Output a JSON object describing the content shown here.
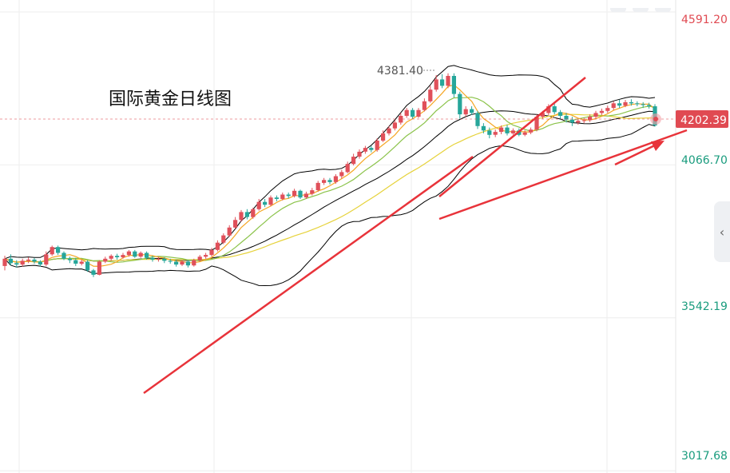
{
  "chart_data": {
    "type": "candlestick",
    "title": "国际黄金日线图",
    "price_axis": {
      "ticks": [
        "4591.20",
        "4066.70",
        "3542.19",
        "3017.68"
      ],
      "tick_values": [
        4591.2,
        4066.7,
        3542.19,
        3017.68
      ],
      "range": [
        3010,
        4605
      ],
      "position": "right"
    },
    "current_price": {
      "label": "4202.39",
      "value": 4202.39,
      "color": "#e04a52"
    },
    "peak_annotation": {
      "label": "4381.40",
      "value": 4381.4
    },
    "colors": {
      "up": "#e0505a",
      "down": "#26a69a",
      "bollinger": "#000000",
      "ma_short": "#f5a623",
      "ma_mid": "#8bc34a",
      "ma_long": "#e6d23a",
      "trend": "#e8333a",
      "grid": "#eeeeee"
    },
    "candles": [
      [
        3720,
        3745,
        3705,
        3755
      ],
      [
        3745,
        3730,
        3722,
        3760
      ],
      [
        3730,
        3725,
        3715,
        3740
      ],
      [
        3725,
        3738,
        3718,
        3745
      ],
      [
        3738,
        3742,
        3730,
        3750
      ],
      [
        3742,
        3735,
        3728,
        3748
      ],
      [
        3735,
        3725,
        3718,
        3740
      ],
      [
        3725,
        3760,
        3720,
        3770
      ],
      [
        3760,
        3785,
        3755,
        3790
      ],
      [
        3785,
        3765,
        3758,
        3790
      ],
      [
        3765,
        3745,
        3740,
        3770
      ],
      [
        3745,
        3740,
        3730,
        3752
      ],
      [
        3740,
        3728,
        3720,
        3748
      ],
      [
        3728,
        3735,
        3722,
        3742
      ],
      [
        3735,
        3705,
        3700,
        3740
      ],
      [
        3705,
        3690,
        3682,
        3710
      ],
      [
        3690,
        3735,
        3688,
        3740
      ],
      [
        3735,
        3745,
        3730,
        3752
      ],
      [
        3745,
        3755,
        3738,
        3760
      ],
      [
        3755,
        3750,
        3742,
        3762
      ],
      [
        3750,
        3758,
        3745,
        3765
      ],
      [
        3758,
        3770,
        3752,
        3775
      ],
      [
        3770,
        3752,
        3748,
        3775
      ],
      [
        3752,
        3765,
        3748,
        3770
      ],
      [
        3765,
        3748,
        3742,
        3770
      ],
      [
        3748,
        3742,
        3735,
        3755
      ],
      [
        3742,
        3745,
        3735,
        3752
      ],
      [
        3745,
        3738,
        3730,
        3750
      ],
      [
        3738,
        3735,
        3728,
        3745
      ],
      [
        3735,
        3725,
        3718,
        3742
      ],
      [
        3725,
        3735,
        3720,
        3740
      ],
      [
        3735,
        3722,
        3715,
        3740
      ],
      [
        3722,
        3740,
        3718,
        3745
      ],
      [
        3740,
        3752,
        3735,
        3758
      ],
      [
        3752,
        3758,
        3745,
        3765
      ],
      [
        3758,
        3775,
        3752,
        3782
      ],
      [
        3775,
        3800,
        3770,
        3808
      ],
      [
        3800,
        3825,
        3795,
        3832
      ],
      [
        3825,
        3852,
        3820,
        3860
      ],
      [
        3852,
        3878,
        3848,
        3888
      ],
      [
        3878,
        3905,
        3872,
        3912
      ],
      [
        3905,
        3888,
        3880,
        3915
      ],
      [
        3888,
        3915,
        3882,
        3920
      ],
      [
        3915,
        3940,
        3910,
        3950
      ],
      [
        3940,
        3930,
        3922,
        3950
      ],
      [
        3930,
        3955,
        3925,
        3962
      ],
      [
        3955,
        3950,
        3942,
        3962
      ],
      [
        3950,
        3965,
        3945,
        3972
      ],
      [
        3965,
        3960,
        3952,
        3972
      ],
      [
        3960,
        3978,
        3955,
        3985
      ],
      [
        3978,
        3955,
        3950,
        3982
      ],
      [
        3955,
        3968,
        3950,
        3975
      ],
      [
        3968,
        3980,
        3962,
        3988
      ],
      [
        3980,
        4005,
        3975,
        4012
      ],
      [
        4005,
        4015,
        3998,
        4022
      ],
      [
        4015,
        4008,
        4000,
        4022
      ],
      [
        4008,
        4028,
        4002,
        4035
      ],
      [
        4028,
        4042,
        4020,
        4050
      ],
      [
        4042,
        4070,
        4038,
        4078
      ],
      [
        4070,
        4095,
        4065,
        4105
      ],
      [
        4095,
        4112,
        4088,
        4120
      ],
      [
        4112,
        4125,
        4105,
        4132
      ],
      [
        4125,
        4118,
        4110,
        4132
      ],
      [
        4118,
        4150,
        4112,
        4158
      ],
      [
        4150,
        4175,
        4145,
        4185
      ],
      [
        4175,
        4192,
        4168,
        4200
      ],
      [
        4192,
        4212,
        4185,
        4220
      ],
      [
        4212,
        4235,
        4205,
        4245
      ],
      [
        4235,
        4255,
        4228,
        4262
      ],
      [
        4255,
        4232,
        4225,
        4262
      ],
      [
        4232,
        4255,
        4228,
        4262
      ],
      [
        4255,
        4285,
        4250,
        4295
      ],
      [
        4285,
        4325,
        4280,
        4338
      ],
      [
        4325,
        4360,
        4318,
        4375
      ],
      [
        4360,
        4338,
        4330,
        4378
      ],
      [
        4338,
        4372,
        4330,
        4381
      ],
      [
        4372,
        4310,
        4298,
        4381
      ],
      [
        4310,
        4240,
        4225,
        4318
      ],
      [
        4240,
        4258,
        4232,
        4268
      ],
      [
        4258,
        4245,
        4238,
        4268
      ],
      [
        4245,
        4200,
        4190,
        4252
      ],
      [
        4200,
        4185,
        4175,
        4210
      ],
      [
        4185,
        4170,
        4158,
        4195
      ],
      [
        4170,
        4180,
        4162,
        4188
      ],
      [
        4180,
        4195,
        4172,
        4202
      ],
      [
        4195,
        4175,
        4168,
        4205
      ],
      [
        4175,
        4185,
        4170,
        4192
      ],
      [
        4185,
        4170,
        4165,
        4192
      ],
      [
        4170,
        4178,
        4165,
        4185
      ],
      [
        4178,
        4188,
        4172,
        4195
      ],
      [
        4188,
        4232,
        4182,
        4240
      ],
      [
        4232,
        4245,
        4225,
        4252
      ],
      [
        4245,
        4268,
        4238,
        4275
      ],
      [
        4268,
        4248,
        4240,
        4278
      ],
      [
        4248,
        4235,
        4225,
        4255
      ],
      [
        4235,
        4222,
        4212,
        4245
      ],
      [
        4222,
        4212,
        4200,
        4232
      ],
      [
        4212,
        4218,
        4205,
        4225
      ],
      [
        4218,
        4220,
        4210,
        4228
      ],
      [
        4220,
        4232,
        4214,
        4240
      ],
      [
        4232,
        4245,
        4226,
        4252
      ],
      [
        4245,
        4252,
        4238,
        4260
      ],
      [
        4252,
        4262,
        4245,
        4270
      ],
      [
        4262,
        4278,
        4255,
        4285
      ],
      [
        4278,
        4270,
        4262,
        4290
      ],
      [
        4270,
        4282,
        4265,
        4290
      ],
      [
        4282,
        4278,
        4270,
        4292
      ],
      [
        4278,
        4275,
        4268,
        4285
      ],
      [
        4275,
        4272,
        4262,
        4282
      ],
      [
        4272,
        4268,
        4260,
        4280
      ],
      [
        4268,
        4202,
        4198,
        4275
      ]
    ]
  }
}
